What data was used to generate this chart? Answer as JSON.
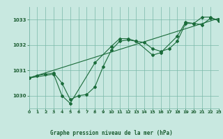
{
  "background_color": "#c8e8e0",
  "grid_color": "#7ab8a8",
  "line_color": "#1a6b3a",
  "title": "Graphe pression niveau de la mer (hPa)",
  "xlim": [
    0,
    23
  ],
  "ylim": [
    1029.5,
    1033.5
  ],
  "yticks": [
    1030,
    1031,
    1032,
    1033
  ],
  "xticks": [
    0,
    1,
    2,
    3,
    4,
    5,
    6,
    7,
    8,
    9,
    10,
    11,
    12,
    13,
    14,
    15,
    16,
    17,
    18,
    19,
    20,
    21,
    22,
    23
  ],
  "hours": [
    0,
    1,
    2,
    3,
    4,
    5,
    6,
    7,
    8,
    9,
    10,
    11,
    12,
    13,
    14,
    15,
    16,
    17,
    18,
    19,
    20,
    21,
    22,
    23
  ],
  "line1": [
    1030.7,
    1030.8,
    1030.85,
    1030.9,
    1030.5,
    1029.85,
    1030.0,
    1030.05,
    1030.35,
    1031.15,
    1031.8,
    1032.15,
    1032.2,
    1032.15,
    1032.1,
    1031.85,
    1031.75,
    1031.85,
    1032.15,
    1032.85,
    1032.85,
    1032.8,
    1033.05,
    1033.0
  ],
  "line2": [
    1030.7,
    null,
    null,
    1030.85,
    1030.0,
    1029.7,
    null,
    null,
    1031.3,
    null,
    1031.95,
    1032.25,
    1032.25,
    1032.15,
    null,
    1031.6,
    1031.7,
    null,
    1032.35,
    1032.9,
    1032.85,
    1033.1,
    1033.1,
    1032.95
  ],
  "line3_x": [
    0,
    23
  ],
  "line3_y": [
    1030.7,
    1033.05
  ]
}
